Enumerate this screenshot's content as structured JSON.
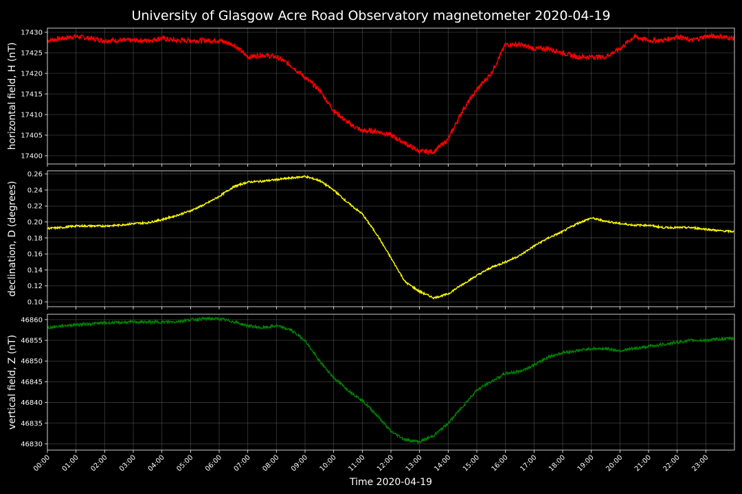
{
  "title": "University of Glasgow Acre Road Observatory magnetometer 2020-04-19",
  "chart_data": [
    {
      "type": "line",
      "panel": "H",
      "ylabel": "horizontal field, H (nT)",
      "ylim": [
        17398,
        17431
      ],
      "yticks": [
        17400,
        17405,
        17410,
        17415,
        17420,
        17425,
        17430
      ],
      "grid": true,
      "color": "#ff0000",
      "x_hours": [
        0,
        0.5,
        1,
        1.5,
        2,
        2.5,
        3,
        3.5,
        4,
        4.5,
        5,
        5.5,
        6,
        6.5,
        7,
        7.5,
        8,
        8.5,
        9,
        9.5,
        10,
        10.5,
        11,
        11.5,
        12,
        12.5,
        13,
        13.5,
        14,
        14.5,
        15,
        15.5,
        16,
        16.5,
        17,
        17.5,
        18,
        18.5,
        19,
        19.5,
        20,
        20.5,
        21,
        21.5,
        22,
        22.5,
        23,
        23.5,
        23.98
      ],
      "values": [
        17428,
        17428.5,
        17429,
        17428.5,
        17428,
        17428,
        17428,
        17428,
        17428.5,
        17428,
        17428,
        17428,
        17428,
        17427,
        17424,
        17424.5,
        17424,
        17422,
        17419,
        17416,
        17411,
        17408,
        17406,
        17406,
        17405,
        17403,
        17401,
        17401,
        17404,
        17411,
        17416,
        17420,
        17427,
        17427,
        17426,
        17426,
        17425,
        17424,
        17424,
        17424,
        17426,
        17429,
        17428,
        17428,
        17429,
        17428,
        17429,
        17429,
        17428.5
      ],
      "noise": 0.6
    },
    {
      "type": "line",
      "panel": "D",
      "ylabel": "declination, D (degrees)",
      "ylim": [
        0.094,
        0.264
      ],
      "yticks": [
        0.1,
        0.12,
        0.14,
        0.16,
        0.18,
        0.2,
        0.22,
        0.24,
        0.26
      ],
      "grid": true,
      "color": "#ffff00",
      "x_hours": [
        0,
        0.5,
        1,
        1.5,
        2,
        2.5,
        3,
        3.5,
        4,
        4.5,
        5,
        5.5,
        6,
        6.5,
        7,
        7.5,
        8,
        8.5,
        9,
        9.5,
        10,
        10.5,
        11,
        11.5,
        12,
        12.5,
        13,
        13.5,
        14,
        14.5,
        15,
        15.5,
        16,
        16.5,
        17,
        17.5,
        18,
        18.5,
        19,
        19.5,
        20,
        20.5,
        21,
        21.5,
        22,
        22.5,
        23,
        23.5,
        23.98
      ],
      "values": [
        0.192,
        0.193,
        0.195,
        0.195,
        0.195,
        0.196,
        0.198,
        0.199,
        0.203,
        0.208,
        0.214,
        0.222,
        0.232,
        0.244,
        0.25,
        0.251,
        0.253,
        0.255,
        0.257,
        0.252,
        0.24,
        0.224,
        0.21,
        0.185,
        0.155,
        0.125,
        0.113,
        0.105,
        0.11,
        0.122,
        0.133,
        0.143,
        0.15,
        0.158,
        0.17,
        0.18,
        0.188,
        0.198,
        0.205,
        0.201,
        0.198,
        0.196,
        0.196,
        0.193,
        0.193,
        0.193,
        0.191,
        0.189,
        0.188
      ],
      "noise": 0.0012
    },
    {
      "type": "line",
      "panel": "Z",
      "ylabel": "vertical field, Z (nT)",
      "ylim": [
        46828.5,
        46861.3
      ],
      "yticks": [
        46830,
        46835,
        46840,
        46845,
        46850,
        46855,
        46860
      ],
      "grid": true,
      "color": "#008000",
      "x_hours": [
        0,
        0.5,
        1,
        1.5,
        2,
        2.5,
        3,
        3.5,
        4,
        4.5,
        5,
        5.5,
        6,
        6.5,
        7,
        7.5,
        8,
        8.5,
        9,
        9.5,
        10,
        10.5,
        11,
        11.5,
        12,
        12.5,
        13,
        13.5,
        14,
        14.5,
        15,
        15.5,
        16,
        16.5,
        17,
        17.5,
        18,
        18.5,
        19,
        19.5,
        20,
        20.5,
        21,
        21.5,
        22,
        22.5,
        23,
        23.5,
        23.98
      ],
      "values": [
        46858,
        46858.5,
        46858.8,
        46859,
        46859.2,
        46859.3,
        46859.4,
        46859.4,
        46859.4,
        46859.5,
        46860,
        46860.2,
        46860.2,
        46859.5,
        46858.5,
        46858,
        46858.5,
        46857.5,
        46855,
        46850,
        46846,
        46843,
        46840.5,
        46837,
        46833,
        46831,
        46830.5,
        46832,
        46835,
        46839,
        46843,
        46845,
        46847,
        46847.5,
        46849,
        46851,
        46852,
        46852.5,
        46853,
        46853,
        46852.5,
        46853,
        46853.5,
        46854,
        46854.5,
        46855,
        46855,
        46855.3,
        46855.5
      ],
      "noise": 0.35
    }
  ],
  "x_axis": {
    "xlabel": "Time 2020-04-19",
    "xlim_hours": [
      0,
      24
    ],
    "tick_labels": [
      "00:00",
      "01:00",
      "02:00",
      "03:00",
      "04:00",
      "05:00",
      "06:00",
      "07:00",
      "08:00",
      "09:00",
      "10:00",
      "11:00",
      "12:00",
      "13:00",
      "14:00",
      "15:00",
      "16:00",
      "17:00",
      "18:00",
      "19:00",
      "20:00",
      "21:00",
      "22:00",
      "23:00"
    ]
  },
  "background": "#000000"
}
